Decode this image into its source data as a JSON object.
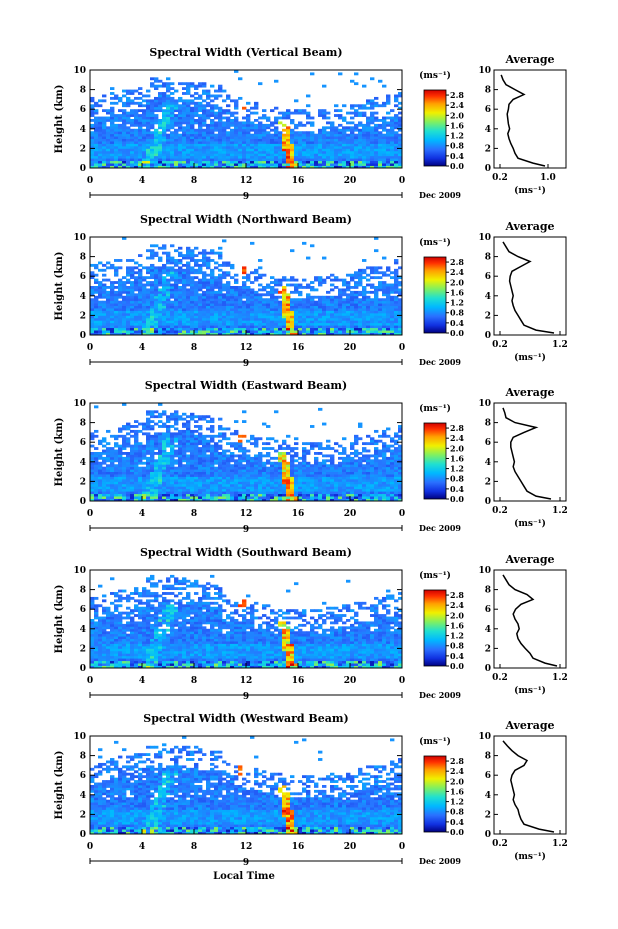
{
  "figure": {
    "xlabel": "Local Time",
    "date_label": "Dec 2009",
    "date_day": "9",
    "colorbar_unit": "(ms⁻¹)",
    "avg_title": "Average",
    "avg_xlabel": "(ms⁻¹)"
  },
  "chart_data": [
    {
      "type": "heatmap",
      "title": "Spectral Width (Vertical Beam)",
      "ylabel": "Height (km)",
      "x_ticks": [
        "0",
        "4",
        "8",
        "12",
        "16",
        "20",
        "0"
      ],
      "xlim": [
        0,
        24
      ],
      "y_ticks": [
        "0",
        "2",
        "4",
        "6",
        "8",
        "10"
      ],
      "ylim": [
        0,
        10
      ],
      "colorbar": {
        "ticks": [
          "2.8",
          "2.4",
          "2.0",
          "1.6",
          "1.2",
          "0.8",
          "0.4",
          "0.0"
        ],
        "range": [
          0,
          3.0
        ]
      },
      "profile": {
        "title": "Average",
        "x_ticks": [
          "0.2",
          "1.0"
        ],
        "xlim": [
          0.1,
          1.3
        ],
        "height": [
          0.2,
          0.5,
          1.0,
          1.5,
          2.0,
          2.5,
          3.0,
          3.5,
          4.0,
          4.5,
          5.0,
          5.5,
          6.0,
          6.5,
          7.0,
          7.5,
          8.0,
          8.5,
          9.0,
          9.5
        ],
        "width": [
          0.95,
          0.75,
          0.5,
          0.45,
          0.42,
          0.38,
          0.35,
          0.33,
          0.36,
          0.34,
          0.33,
          0.32,
          0.34,
          0.35,
          0.42,
          0.6,
          0.45,
          0.3,
          0.25,
          0.22
        ]
      }
    },
    {
      "type": "heatmap",
      "title": "Spectral Width (Northward Beam)",
      "ylabel": "Height (km)",
      "x_ticks": [
        "0",
        "4",
        "8",
        "12",
        "16",
        "20",
        "0"
      ],
      "xlim": [
        0,
        24
      ],
      "y_ticks": [
        "0",
        "2",
        "4",
        "6",
        "8",
        "10"
      ],
      "ylim": [
        0,
        10
      ],
      "colorbar": {
        "ticks": [
          "2.8",
          "2.4",
          "2.0",
          "1.6",
          "1.2",
          "0.8",
          "0.4",
          "0.0"
        ],
        "range": [
          0,
          3.0
        ]
      },
      "profile": {
        "title": "Average",
        "x_ticks": [
          "0.2",
          "1.2"
        ],
        "xlim": [
          0.1,
          1.3
        ],
        "height": [
          0.2,
          0.5,
          1.0,
          1.5,
          2.0,
          2.5,
          3.0,
          3.5,
          4.0,
          4.5,
          5.0,
          5.5,
          6.0,
          6.5,
          7.0,
          7.5,
          8.0,
          8.5,
          9.0,
          9.5
        ],
        "width": [
          1.1,
          0.8,
          0.6,
          0.55,
          0.5,
          0.45,
          0.42,
          0.4,
          0.42,
          0.4,
          0.38,
          0.36,
          0.37,
          0.4,
          0.55,
          0.7,
          0.5,
          0.35,
          0.3,
          0.25
        ]
      }
    },
    {
      "type": "heatmap",
      "title": "Spectral Width (Eastward Beam)",
      "ylabel": "Height (km)",
      "x_ticks": [
        "0",
        "4",
        "8",
        "12",
        "16",
        "20",
        "0"
      ],
      "xlim": [
        0,
        24
      ],
      "y_ticks": [
        "0",
        "2",
        "4",
        "6",
        "8",
        "10"
      ],
      "ylim": [
        0,
        10
      ],
      "colorbar": {
        "ticks": [
          "2.8",
          "2.4",
          "2.0",
          "1.6",
          "1.2",
          "0.8",
          "0.4",
          "0.0"
        ],
        "range": [
          0,
          3.0
        ]
      },
      "profile": {
        "title": "Average",
        "x_ticks": [
          "0.2",
          "1.2"
        ],
        "xlim": [
          0.1,
          1.3
        ],
        "height": [
          0.2,
          0.5,
          1.0,
          1.5,
          2.0,
          2.5,
          3.0,
          3.5,
          4.0,
          4.5,
          5.0,
          5.5,
          6.0,
          6.5,
          7.0,
          7.5,
          8.0,
          8.5,
          9.0,
          9.5
        ],
        "width": [
          1.05,
          0.8,
          0.65,
          0.6,
          0.55,
          0.5,
          0.45,
          0.42,
          0.44,
          0.42,
          0.4,
          0.38,
          0.38,
          0.42,
          0.6,
          0.8,
          0.45,
          0.3,
          0.28,
          0.25
        ]
      }
    },
    {
      "type": "heatmap",
      "title": "Spectral Width (Southward Beam)",
      "ylabel": "Height (km)",
      "x_ticks": [
        "0",
        "4",
        "8",
        "12",
        "16",
        "20",
        "0"
      ],
      "xlim": [
        0,
        24
      ],
      "y_ticks": [
        "0",
        "2",
        "4",
        "6",
        "8",
        "10"
      ],
      "ylim": [
        0,
        10
      ],
      "colorbar": {
        "ticks": [
          "2.8",
          "2.4",
          "2.0",
          "1.6",
          "1.2",
          "0.8",
          "0.4",
          "0.0"
        ],
        "range": [
          0,
          3.0
        ]
      },
      "profile": {
        "title": "Average",
        "x_ticks": [
          "0.2",
          "1.2"
        ],
        "xlim": [
          0.1,
          1.3
        ],
        "height": [
          0.2,
          0.5,
          1.0,
          1.5,
          2.0,
          2.5,
          3.0,
          3.5,
          4.0,
          4.5,
          5.0,
          5.5,
          6.0,
          6.5,
          7.0,
          7.5,
          8.0,
          8.5,
          9.0,
          9.5
        ],
        "width": [
          1.15,
          0.95,
          0.75,
          0.7,
          0.62,
          0.55,
          0.5,
          0.48,
          0.52,
          0.5,
          0.45,
          0.42,
          0.46,
          0.55,
          0.75,
          0.65,
          0.45,
          0.35,
          0.3,
          0.25
        ]
      }
    },
    {
      "type": "heatmap",
      "title": "Spectral Width (Westward Beam)",
      "ylabel": "Height (km)",
      "x_ticks": [
        "0",
        "4",
        "8",
        "12",
        "16",
        "20",
        "0"
      ],
      "xlim": [
        0,
        24
      ],
      "y_ticks": [
        "0",
        "2",
        "4",
        "6",
        "8",
        "10"
      ],
      "ylim": [
        0,
        10
      ],
      "colorbar": {
        "ticks": [
          "2.8",
          "2.4",
          "2.0",
          "1.6",
          "1.2",
          "0.8",
          "0.4",
          "0.0"
        ],
        "range": [
          0,
          3.0
        ]
      },
      "profile": {
        "title": "Average",
        "x_ticks": [
          "0.2",
          "1.2"
        ],
        "xlim": [
          0.1,
          1.3
        ],
        "height": [
          0.2,
          0.5,
          1.0,
          1.5,
          2.0,
          2.5,
          3.0,
          3.5,
          4.0,
          4.5,
          5.0,
          5.5,
          6.0,
          6.5,
          7.0,
          7.5,
          8.0,
          8.5,
          9.0,
          9.5
        ],
        "width": [
          1.1,
          0.85,
          0.6,
          0.55,
          0.52,
          0.5,
          0.45,
          0.42,
          0.44,
          0.42,
          0.4,
          0.38,
          0.4,
          0.45,
          0.6,
          0.65,
          0.5,
          0.4,
          0.32,
          0.25
        ]
      }
    }
  ]
}
